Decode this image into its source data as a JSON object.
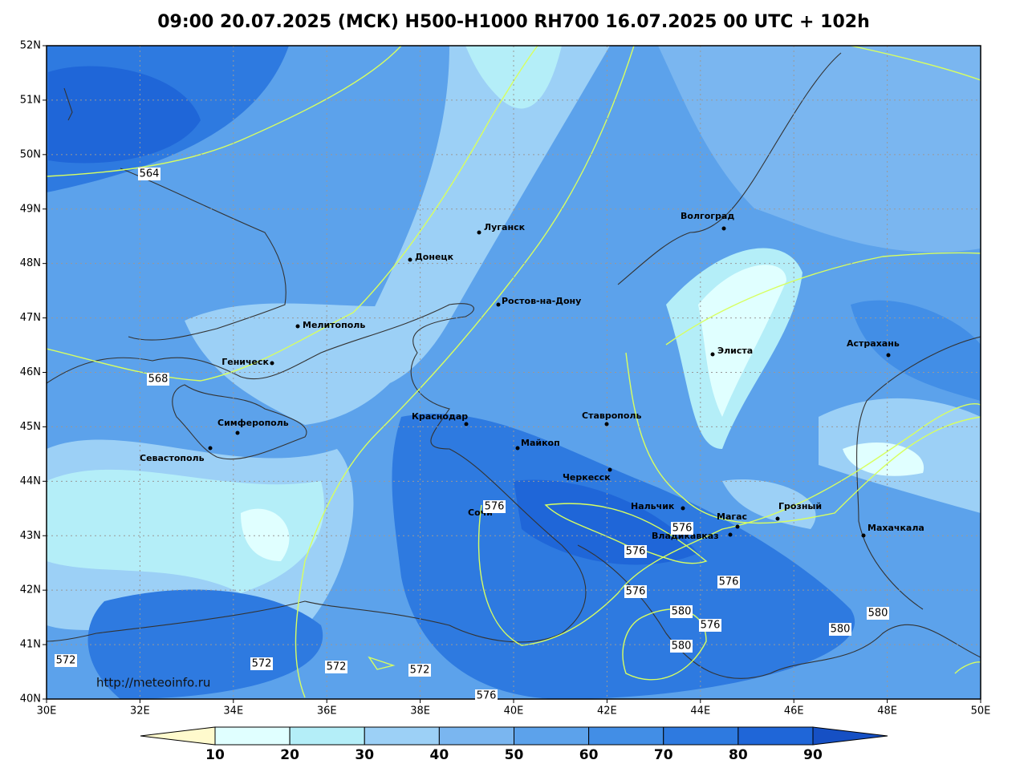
{
  "title": "09:00 20.07.2025 (МСК) H500-H1000 RH700 16.07.2025 00 UTC + 102h",
  "map": {
    "xticks": [
      {
        "value": 30,
        "label": "30E"
      },
      {
        "value": 32,
        "label": "32E"
      },
      {
        "value": 34,
        "label": "34E"
      },
      {
        "value": 36,
        "label": "36E"
      },
      {
        "value": 38,
        "label": "38E"
      },
      {
        "value": 40,
        "label": "40E"
      },
      {
        "value": 42,
        "label": "42E"
      },
      {
        "value": 44,
        "label": "44E"
      },
      {
        "value": 46,
        "label": "46E"
      },
      {
        "value": 48,
        "label": "48E"
      },
      {
        "value": 50,
        "label": "50E"
      }
    ],
    "yticks": [
      {
        "value": 40,
        "label": "40N"
      },
      {
        "value": 41,
        "label": "41N"
      },
      {
        "value": 42,
        "label": "42N"
      },
      {
        "value": 43,
        "label": "43N"
      },
      {
        "value": 44,
        "label": "44N"
      },
      {
        "value": 45,
        "label": "45N"
      },
      {
        "value": 46,
        "label": "46N"
      },
      {
        "value": 47,
        "label": "47N"
      },
      {
        "value": 48,
        "label": "48N"
      },
      {
        "value": 49,
        "label": "49N"
      },
      {
        "value": 50,
        "label": "50N"
      },
      {
        "value": 51,
        "label": "51N"
      },
      {
        "value": 52,
        "label": "52N"
      }
    ],
    "xlim": [
      30,
      50
    ],
    "ylim": [
      40,
      52
    ],
    "grid": true,
    "cities": [
      "Луганск",
      "Донецк",
      "Ростов-на-Дону",
      "Мелитополь",
      "Геническ",
      "Симферополь",
      "Севастополь",
      "Краснодар",
      "Майкоп",
      "Ставрополь",
      "Черкесск",
      "Нальчик",
      "Магас",
      "Владикавказ",
      "Грозный",
      "Махачкала",
      "Элиста",
      "Астрахань",
      "Волгоград",
      "Сочи"
    ],
    "contour_labels": [
      564,
      568,
      572,
      572,
      572,
      572,
      576,
      576,
      576,
      576,
      576,
      576,
      576,
      580,
      580,
      580,
      580
    ],
    "contour_color": "#d8ff60",
    "credit": "http://meteoinfo.ru"
  },
  "colorbar": {
    "ticks": [
      10,
      20,
      30,
      40,
      50,
      60,
      70,
      80,
      90
    ],
    "colors": [
      "#fffacd",
      "#e0ffff",
      "#b4eef8",
      "#9cd0f6",
      "#7ab6f0",
      "#5ca2eb",
      "#428ee6",
      "#2e7ae0",
      "#1f66d8",
      "#1650c4"
    ]
  }
}
